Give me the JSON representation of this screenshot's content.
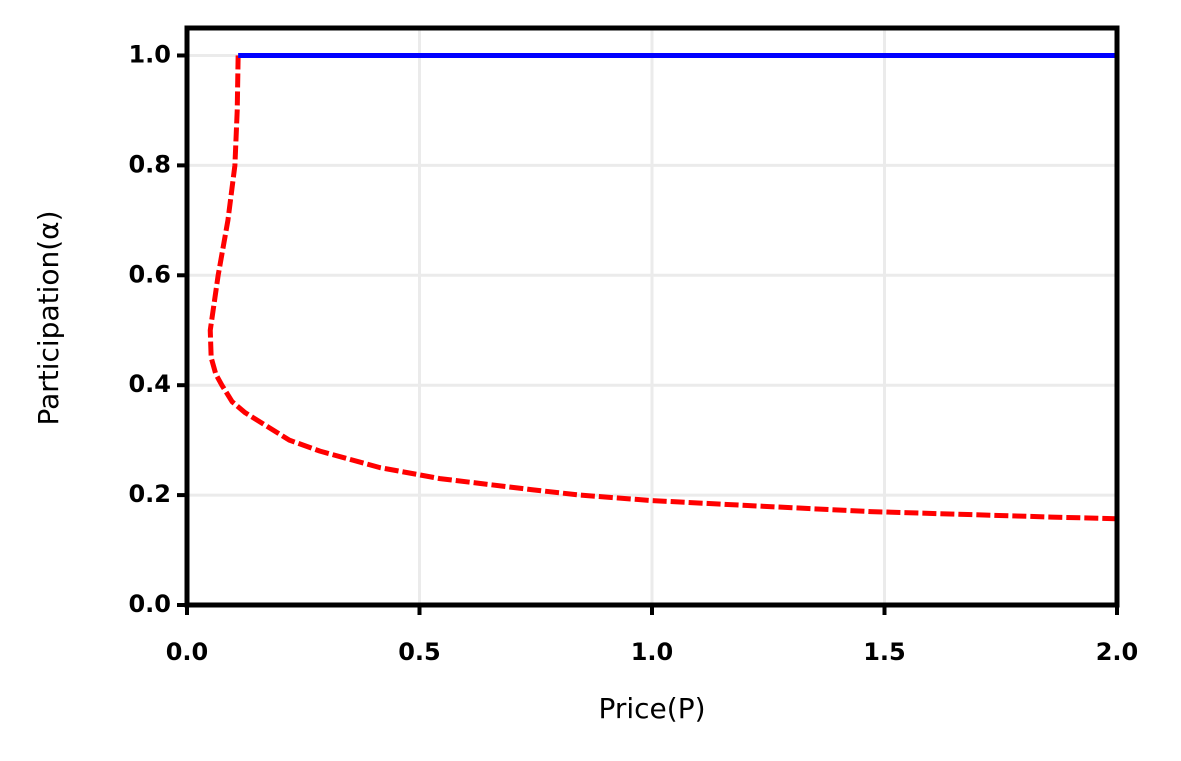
{
  "chart_data": {
    "type": "line",
    "x_label": "Price(P)",
    "y_label": "Participation(α)",
    "xlim": [
      0,
      2.0
    ],
    "ylim": [
      0,
      1.05
    ],
    "xticks": [
      {
        "value": 0,
        "label": "0.0"
      },
      {
        "value": 0.5,
        "label": "0.5"
      },
      {
        "value": 1.0,
        "label": "1.0"
      },
      {
        "value": 1.5,
        "label": "1.5"
      },
      {
        "value": 2.0,
        "label": "2.0"
      }
    ],
    "yticks": [
      {
        "value": 0,
        "label": "0.0"
      },
      {
        "value": 0.2,
        "label": "0.2"
      },
      {
        "value": 0.4,
        "label": "0.4"
      },
      {
        "value": 0.6,
        "label": "0.6"
      },
      {
        "value": 0.8,
        "label": "0.8"
      },
      {
        "value": 1.0,
        "label": "1.0"
      }
    ],
    "grid": true,
    "series": [
      {
        "color": "#ff0000",
        "dash": "dashed",
        "x": [
          0.11,
          0.108,
          0.103,
          0.088,
          0.067,
          0.05,
          0.052,
          0.062,
          0.075,
          0.097,
          0.125,
          0.22,
          0.286,
          0.415,
          0.544,
          0.74,
          0.845,
          1.0,
          1.23,
          1.47,
          1.86,
          2.0
        ],
        "values": [
          1.0,
          0.9,
          0.8,
          0.7,
          0.6,
          0.5,
          0.45,
          0.42,
          0.4,
          0.37,
          0.35,
          0.3,
          0.28,
          0.25,
          0.23,
          0.21,
          0.2,
          0.19,
          0.18,
          0.17,
          0.16,
          0.157
        ]
      },
      {
        "color": "#0000ff",
        "dash": "solid",
        "x": [
          0.11,
          2.0
        ],
        "values": [
          1.0,
          1.0
        ]
      }
    ]
  }
}
